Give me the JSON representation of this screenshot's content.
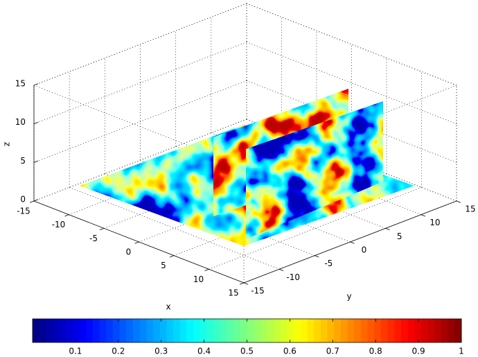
{
  "chart_data": {
    "type": "slice3d",
    "xlabel": "x",
    "ylabel": "y",
    "zlabel": "z",
    "xlim": [
      -15,
      15
    ],
    "ylim": [
      -15,
      15
    ],
    "zlim": [
      0,
      15
    ],
    "xticks": [
      -15,
      -10,
      -5,
      0,
      5,
      10,
      15
    ],
    "yticks": [
      -15,
      -10,
      -5,
      0,
      5,
      10,
      15
    ],
    "zticks": [
      0,
      5,
      10,
      15
    ],
    "grid": true,
    "colormap": "jet",
    "clim": [
      0,
      1
    ],
    "colorbar_ticks": [
      0.1,
      0.2,
      0.3,
      0.4,
      0.5,
      0.6,
      0.7,
      0.8,
      0.9,
      1
    ]
  }
}
